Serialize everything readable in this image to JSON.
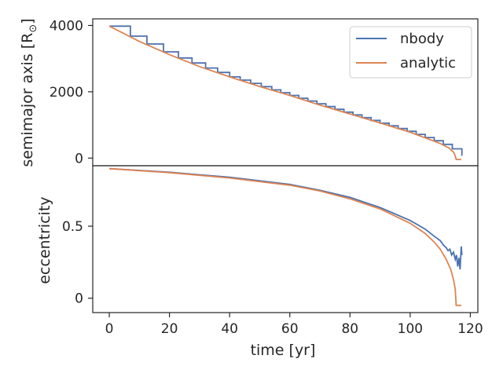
{
  "chart_data": [
    {
      "type": "line",
      "panel": "top",
      "ylabel": "semimajor axis [R",
      "ylabel_sub": "⊙",
      "ylabel_close": "]",
      "xlim": [
        -5.5,
        122.5
      ],
      "ylim": [
        -230,
        4200
      ],
      "yticks": [
        0,
        2000,
        4000
      ],
      "legend": {
        "position": "top-right",
        "entries": [
          "nbody",
          "analytic"
        ]
      },
      "series": [
        {
          "name": "nbody",
          "color": "#4c72b0",
          "step_times": [
            0,
            7,
            12.5,
            18,
            23,
            27.5,
            32,
            36,
            40,
            43.5,
            47,
            50.5,
            54,
            57,
            60,
            63,
            66,
            69,
            72,
            75,
            78,
            81,
            84,
            87,
            90,
            93,
            96,
            99,
            102,
            105,
            108,
            111,
            114,
            117.2
          ],
          "analytic_points": [
            [
              0,
              3980
            ],
            [
              20,
              3120
            ],
            [
              40,
              2450
            ],
            [
              60,
              1890
            ],
            [
              80,
              1330
            ],
            [
              100,
              780
            ],
            [
              110,
              460
            ],
            [
              114,
              280
            ],
            [
              116,
              120
            ],
            [
              117.2,
              70
            ]
          ]
        },
        {
          "name": "analytic",
          "color": "#dd8452",
          "points": [
            [
              0,
              3980
            ],
            [
              10,
              3520
            ],
            [
              20,
              3120
            ],
            [
              30,
              2760
            ],
            [
              40,
              2450
            ],
            [
              50,
              2160
            ],
            [
              60,
              1890
            ],
            [
              70,
              1600
            ],
            [
              80,
              1330
            ],
            [
              90,
              1060
            ],
            [
              100,
              780
            ],
            [
              105,
              610
            ],
            [
              110,
              440
            ],
            [
              113,
              300
            ],
            [
              114.5,
              170
            ],
            [
              115,
              60
            ],
            [
              115.3,
              -40
            ],
            [
              117,
              -40
            ]
          ]
        }
      ]
    },
    {
      "type": "line",
      "panel": "bottom",
      "ylabel": "eccentricity",
      "xlabel": "time [yr]",
      "xlim": [
        -5.5,
        122.5
      ],
      "ylim": [
        -0.1,
        0.92
      ],
      "xticks": [
        0,
        20,
        40,
        60,
        80,
        100,
        120
      ],
      "yticks": [
        0.0,
        0.5
      ],
      "series": [
        {
          "name": "nbody",
          "color": "#4c72b0",
          "points": [
            [
              0,
              0.9
            ],
            [
              20,
              0.875
            ],
            [
              40,
              0.84
            ],
            [
              60,
              0.79
            ],
            [
              70,
              0.75
            ],
            [
              80,
              0.7
            ],
            [
              90,
              0.63
            ],
            [
              100,
              0.54
            ],
            [
              105,
              0.48
            ],
            [
              108,
              0.43
            ],
            [
              110,
              0.4
            ],
            [
              111,
              0.37
            ],
            [
              112,
              0.35
            ],
            [
              112.6,
              0.33
            ],
            [
              113.2,
              0.34
            ],
            [
              113.8,
              0.3
            ],
            [
              114.4,
              0.32
            ],
            [
              115,
              0.27
            ],
            [
              115.4,
              0.3
            ],
            [
              115.8,
              0.22
            ],
            [
              116.2,
              0.28
            ],
            [
              116.6,
              0.2
            ],
            [
              117,
              0.36
            ],
            [
              117.2,
              0.3
            ]
          ]
        },
        {
          "name": "analytic",
          "color": "#dd8452",
          "points": [
            [
              0,
              0.9
            ],
            [
              20,
              0.872
            ],
            [
              40,
              0.835
            ],
            [
              60,
              0.785
            ],
            [
              70,
              0.745
            ],
            [
              80,
              0.69
            ],
            [
              90,
              0.62
            ],
            [
              100,
              0.52
            ],
            [
              105,
              0.45
            ],
            [
              108,
              0.39
            ],
            [
              110,
              0.34
            ],
            [
              112,
              0.27
            ],
            [
              113.5,
              0.2
            ],
            [
              114.5,
              0.12
            ],
            [
              115,
              0.06
            ],
            [
              115.3,
              -0.05
            ],
            [
              117,
              -0.05
            ]
          ]
        }
      ]
    }
  ]
}
